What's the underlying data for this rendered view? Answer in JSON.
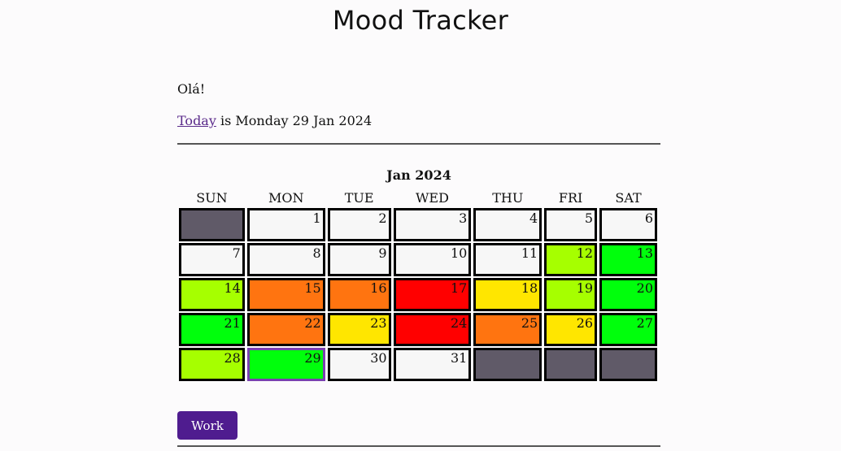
{
  "app": {
    "title": "Mood Tracker"
  },
  "greeting": "Olá!",
  "today": {
    "link_label": "Today",
    "rest": " is Monday 29 Jan 2024"
  },
  "calendar": {
    "month_label": "Jan 2024",
    "weekdays": [
      "SUN",
      "MON",
      "TUE",
      "WED",
      "THU",
      "FRI",
      "SAT"
    ],
    "colors": {
      "empty": "#605a68",
      "none": "#f7f7f7",
      "green": "#00ff0c",
      "lime": "#a6ff00",
      "yellow": "#ffe600",
      "orange": "#ff7410",
      "red": "#ff0000"
    },
    "weeks": [
      [
        {
          "day": "",
          "mood": "empty"
        },
        {
          "day": "1",
          "mood": "none"
        },
        {
          "day": "2",
          "mood": "none"
        },
        {
          "day": "3",
          "mood": "none"
        },
        {
          "day": "4",
          "mood": "none"
        },
        {
          "day": "5",
          "mood": "none"
        },
        {
          "day": "6",
          "mood": "none"
        }
      ],
      [
        {
          "day": "7",
          "mood": "none"
        },
        {
          "day": "8",
          "mood": "none"
        },
        {
          "day": "9",
          "mood": "none"
        },
        {
          "day": "10",
          "mood": "none"
        },
        {
          "day": "11",
          "mood": "none"
        },
        {
          "day": "12",
          "mood": "lime"
        },
        {
          "day": "13",
          "mood": "green"
        }
      ],
      [
        {
          "day": "14",
          "mood": "lime"
        },
        {
          "day": "15",
          "mood": "orange"
        },
        {
          "day": "16",
          "mood": "orange"
        },
        {
          "day": "17",
          "mood": "red"
        },
        {
          "day": "18",
          "mood": "yellow"
        },
        {
          "day": "19",
          "mood": "lime"
        },
        {
          "day": "20",
          "mood": "green"
        }
      ],
      [
        {
          "day": "21",
          "mood": "green"
        },
        {
          "day": "22",
          "mood": "orange"
        },
        {
          "day": "23",
          "mood": "yellow"
        },
        {
          "day": "24",
          "mood": "red"
        },
        {
          "day": "25",
          "mood": "orange"
        },
        {
          "day": "26",
          "mood": "yellow"
        },
        {
          "day": "27",
          "mood": "green"
        }
      ],
      [
        {
          "day": "28",
          "mood": "lime"
        },
        {
          "day": "29",
          "mood": "green",
          "today": true
        },
        {
          "day": "30",
          "mood": "none"
        },
        {
          "day": "31",
          "mood": "none"
        },
        {
          "day": "",
          "mood": "empty"
        },
        {
          "day": "",
          "mood": "empty"
        },
        {
          "day": "",
          "mood": "empty"
        }
      ]
    ]
  },
  "work_button": {
    "label": "Work"
  }
}
